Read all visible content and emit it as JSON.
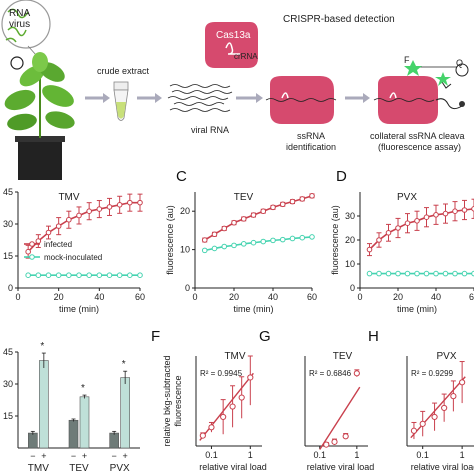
{
  "colors": {
    "infected": "#c9404d",
    "mock": "#45d3b0",
    "bar_light": "#bfe0d8",
    "bar_dark": "#6e7b78",
    "leaf_green": "#5cab2f",
    "cas": "#d64a6e",
    "panel_bg": "#ffffff"
  },
  "schematic": {
    "virus_label": "RNA\nvirus",
    "crispr_title": "CRISPR-based detection",
    "crude_extract": "crude extract",
    "viral_rna": "viral RNA",
    "cas13a": "Cas13a",
    "crrna": "crRNA",
    "ssrna_identification": "ssRNA\nidentification",
    "collateral": "collateral ssRNA cleava",
    "fluorescence_assay": "(fluorescence assay)",
    "f_label": "F",
    "q_label": "Q",
    "icons": [
      "virus-icon",
      "plant-icon",
      "tube-icon",
      "arrow-icon",
      "cas13a-icon",
      "quencher-icon"
    ]
  },
  "panels": {
    "C": {
      "letter": "C"
    },
    "D": {
      "letter": "D"
    },
    "F": {
      "letter": "F"
    },
    "G": {
      "letter": "G"
    },
    "H": {
      "letter": "H"
    }
  },
  "chart_data": [
    {
      "id": "B",
      "type": "line",
      "title": "TMV",
      "xlabel": "time (min)",
      "ylabel": "",
      "xlim": [
        0,
        60
      ],
      "ylim": [
        0,
        45
      ],
      "xticks": [
        0,
        20,
        40,
        60
      ],
      "yticks": [
        0,
        15,
        30,
        45
      ],
      "legend": [
        "infected",
        "mock-inoculated"
      ],
      "series": [
        {
          "name": "infected",
          "x": [
            5,
            10,
            15,
            20,
            25,
            30,
            35,
            40,
            45,
            50,
            55,
            60
          ],
          "y": [
            17,
            22,
            26,
            29,
            32,
            34,
            36,
            37,
            38,
            39,
            40,
            40
          ],
          "err": [
            3,
            3,
            3,
            4,
            4,
            4,
            4,
            4,
            4,
            4,
            4,
            4
          ]
        },
        {
          "name": "mock-inoculated",
          "x": [
            5,
            10,
            15,
            20,
            25,
            30,
            35,
            40,
            45,
            50,
            55,
            60
          ],
          "y": [
            6,
            6,
            6,
            6,
            6,
            6,
            6,
            6,
            6,
            6,
            6,
            6
          ],
          "err": [
            0,
            0,
            0,
            0,
            0,
            0,
            0,
            0,
            0,
            0,
            0,
            0
          ]
        }
      ]
    },
    {
      "id": "C",
      "type": "line",
      "title": "TEV",
      "xlabel": "time (min)",
      "ylabel": "fluorescence (au)",
      "xlim": [
        0,
        60
      ],
      "ylim": [
        0,
        25
      ],
      "xticks": [
        0,
        20,
        40,
        60
      ],
      "yticks": [
        0,
        10,
        20
      ],
      "series": [
        {
          "name": "infected",
          "x": [
            5,
            10,
            15,
            20,
            25,
            30,
            35,
            40,
            45,
            50,
            55,
            60
          ],
          "y": [
            12.5,
            14,
            15.5,
            17,
            18,
            19,
            20,
            21,
            21.8,
            22.5,
            23.2,
            24
          ],
          "err": [
            0.5,
            0.5,
            0.5,
            0.5,
            0.5,
            0.5,
            0.5,
            0.5,
            0.5,
            0.5,
            0.5,
            0.5
          ]
        },
        {
          "name": "mock-inoculated",
          "x": [
            5,
            10,
            15,
            20,
            25,
            30,
            35,
            40,
            45,
            50,
            55,
            60
          ],
          "y": [
            9.8,
            10.3,
            10.8,
            11.1,
            11.5,
            11.8,
            12.1,
            12.4,
            12.6,
            12.9,
            13.1,
            13.3
          ],
          "err": [
            0,
            0,
            0,
            0,
            0,
            0,
            0,
            0,
            0,
            0,
            0,
            0
          ]
        }
      ]
    },
    {
      "id": "D",
      "type": "line",
      "title": "PVX",
      "xlabel": "time (min)",
      "ylabel": "fluorescence (au)",
      "xlim": [
        0,
        60
      ],
      "ylim": [
        0,
        40
      ],
      "xticks": [
        0,
        20,
        40,
        60
      ],
      "yticks": [
        0,
        10,
        20,
        30
      ],
      "series": [
        {
          "name": "infected",
          "x": [
            5,
            10,
            15,
            20,
            25,
            30,
            35,
            40,
            45,
            50,
            55,
            60
          ],
          "y": [
            16,
            20,
            23,
            25,
            27,
            28,
            29.5,
            30.5,
            31,
            32,
            32.5,
            33
          ],
          "err": [
            2.5,
            3,
            3.5,
            4,
            4,
            4,
            4,
            4,
            4,
            4,
            4,
            4
          ]
        },
        {
          "name": "mock-inoculated",
          "x": [
            5,
            10,
            15,
            20,
            25,
            30,
            35,
            40,
            45,
            50,
            55,
            60
          ],
          "y": [
            6,
            6,
            6,
            6,
            6,
            6,
            6,
            6,
            6,
            6,
            6,
            6
          ],
          "err": [
            0,
            0,
            0,
            0,
            0,
            0,
            0,
            0,
            0,
            0,
            0,
            0
          ]
        }
      ]
    },
    {
      "id": "E",
      "type": "bar",
      "categories": [
        "TMV",
        "TEV",
        "PVX"
      ],
      "signs": [
        "−",
        "+"
      ],
      "ylim": [
        0,
        45
      ],
      "yticks": [
        15,
        30,
        45
      ],
      "series": [
        {
          "name": "−",
          "values": [
            7,
            13,
            7
          ],
          "err": [
            0.8,
            0.6,
            0.8
          ]
        },
        {
          "name": "+",
          "values": [
            41,
            24,
            33
          ],
          "err": [
            3.5,
            0.8,
            3
          ]
        }
      ],
      "annotations": [
        "*",
        "*",
        "*"
      ]
    },
    {
      "id": "F",
      "type": "scatter",
      "title": "TMV",
      "xlabel": "relative viral load",
      "ylabel": "relative bkg-subtracted fluorescence",
      "xscale": "log",
      "xlim": [
        0.04,
        2
      ],
      "ylim": [
        0,
        1.3
      ],
      "xticks": [
        0.1,
        1
      ],
      "yticks": [
        0,
        0.5,
        1
      ],
      "r2": "R² = 0.9945",
      "points": {
        "x": [
          0.06,
          0.1,
          0.2,
          0.35,
          0.6,
          1
        ],
        "y": [
          0.15,
          0.27,
          0.42,
          0.57,
          0.7,
          0.99
        ],
        "err": [
          0.04,
          0.07,
          0.25,
          0.3,
          0.3,
          0.4
        ]
      },
      "fit": {
        "x": [
          0.05,
          1.2
        ],
        "y": [
          0.08,
          1.05
        ]
      }
    },
    {
      "id": "G",
      "type": "scatter",
      "title": "TEV",
      "xlabel": "relative viral load",
      "ylabel": "",
      "xscale": "log",
      "xlim": [
        0.04,
        2
      ],
      "ylim": [
        0,
        1.3
      ],
      "xticks": [
        0.1,
        1
      ],
      "r2": "R² = 0.6846",
      "points": {
        "x": [
          0.15,
          0.25,
          0.5,
          1
        ],
        "y": [
          0.02,
          0.06,
          0.14,
          1.05
        ],
        "err": [
          0.03,
          0.04,
          0.04,
          0.05
        ]
      },
      "fit": {
        "x": [
          0.1,
          1.2
        ],
        "y": [
          -0.05,
          0.85
        ]
      }
    },
    {
      "id": "H",
      "type": "scatter",
      "title": "PVX",
      "xlabel": "relative viral load",
      "ylabel": "",
      "xscale": "log",
      "xlim": [
        0.04,
        2
      ],
      "ylim": [
        0,
        1.3
      ],
      "xticks": [
        0.1,
        1
      ],
      "r2": "R² = 0.9299",
      "points": {
        "x": [
          0.06,
          0.1,
          0.2,
          0.35,
          0.6,
          1
        ],
        "y": [
          0.22,
          0.32,
          0.42,
          0.55,
          0.72,
          0.92
        ],
        "err": [
          0.12,
          0.18,
          0.2,
          0.2,
          0.22,
          0.3
        ]
      },
      "fit": {
        "x": [
          0.05,
          1.2
        ],
        "y": [
          0.12,
          1.0
        ]
      }
    }
  ]
}
